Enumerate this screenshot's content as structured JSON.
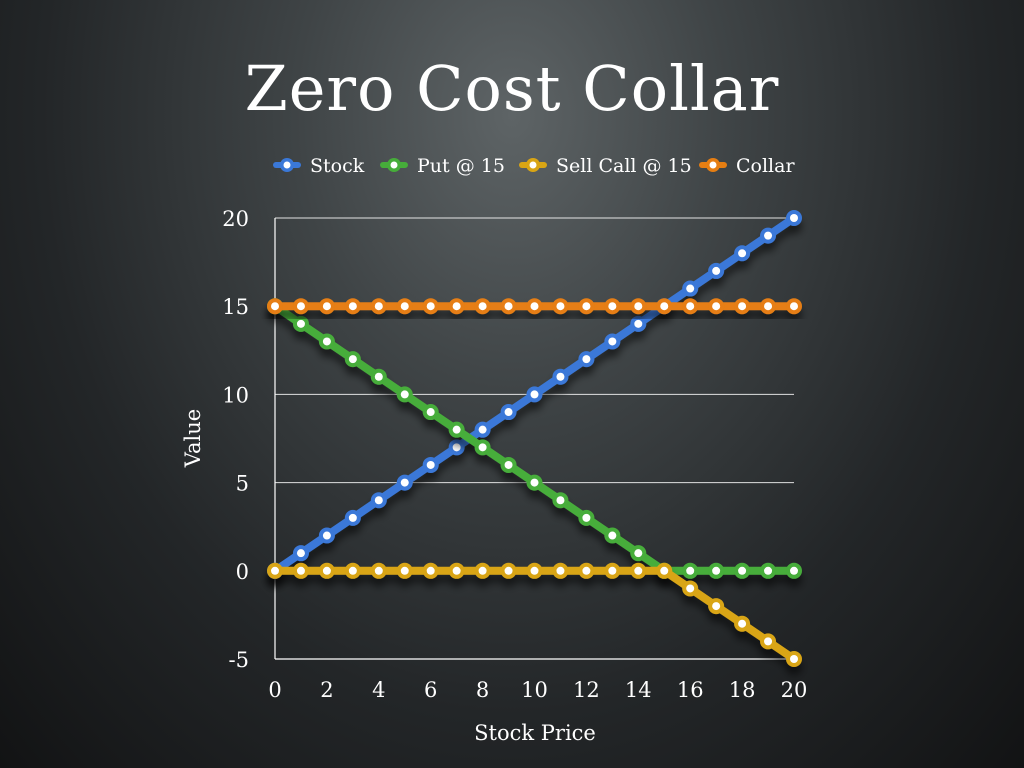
{
  "slide": {
    "title": "Zero Cost Collar"
  },
  "colors": {
    "background": "#2a2d2f",
    "axis": "#ffffff",
    "gridline": "#ffffff",
    "Stock": "#3a78d8",
    "Put @ 15": "#46ad3a",
    "Sell Call @ 15": "#d9a514",
    "Collar": "#e67e12",
    "marker_fill": "#ffffff"
  },
  "chart_data": {
    "type": "line",
    "title": "Zero Cost Collar",
    "xlabel": "Stock Price",
    "ylabel": "Value",
    "xlim": [
      0,
      20
    ],
    "ylim": [
      -5,
      20
    ],
    "x_ticks": [
      "0",
      "2",
      "4",
      "6",
      "8",
      "10",
      "12",
      "14",
      "16",
      "18",
      "20"
    ],
    "y_ticks": [
      "-5",
      "0",
      "5",
      "10",
      "15",
      "20"
    ],
    "grid": "horizontal",
    "legend": "top",
    "x": [
      0,
      1,
      2,
      3,
      4,
      5,
      6,
      7,
      8,
      9,
      10,
      11,
      12,
      13,
      14,
      15,
      16,
      17,
      18,
      19,
      20
    ],
    "series": [
      {
        "name": "Stock",
        "values": [
          0,
          1,
          2,
          3,
          4,
          5,
          6,
          7,
          8,
          9,
          10,
          11,
          12,
          13,
          14,
          15,
          16,
          17,
          18,
          19,
          20
        ]
      },
      {
        "name": "Put @ 15",
        "values": [
          15,
          14,
          13,
          12,
          11,
          10,
          9,
          8,
          7,
          6,
          5,
          4,
          3,
          2,
          1,
          0,
          0,
          0,
          0,
          0,
          0
        ]
      },
      {
        "name": "Sell Call @ 15",
        "values": [
          0,
          0,
          0,
          0,
          0,
          0,
          0,
          0,
          0,
          0,
          0,
          0,
          0,
          0,
          0,
          0,
          -1,
          -2,
          -3,
          -4,
          -5
        ]
      },
      {
        "name": "Collar",
        "values": [
          15,
          15,
          15,
          15,
          15,
          15,
          15,
          15,
          15,
          15,
          15,
          15,
          15,
          15,
          15,
          15,
          15,
          15,
          15,
          15,
          15
        ]
      }
    ]
  }
}
